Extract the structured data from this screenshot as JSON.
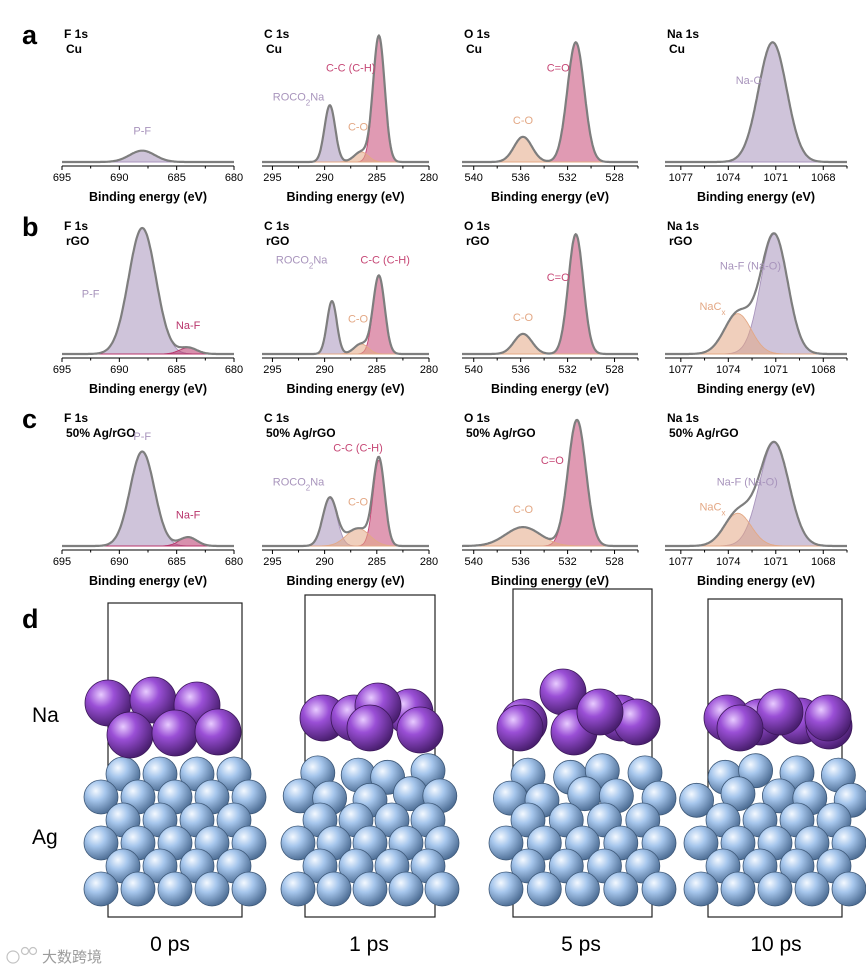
{
  "colors": {
    "P-F": "#a894bc",
    "Na-F": "#b8346a",
    "C-C": "#c64775",
    "C-O": "#e3a885",
    "ROCO2Na": "#a894bc",
    "C=O": "#c64775",
    "Na-O": "#a894bc",
    "NaCx": "#e3a885",
    "envelope": "#7e7e7e",
    "Na_atom": "#9a52d6",
    "Ag_atom": "#94b8e2"
  },
  "panel_letters": [
    "a",
    "b",
    "c",
    "d"
  ],
  "md": {
    "na_label": "Na",
    "ag_label": "Ag",
    "times": [
      "0 ps",
      "1 ps",
      "5 ps",
      "10 ps"
    ]
  },
  "watermark": "大数跨境",
  "chart_data": [
    {
      "type": "area",
      "panel": "a",
      "element": "F 1s",
      "substrate": "Cu",
      "xlabel": "Binding energy (eV)",
      "xlim": [
        695,
        680
      ],
      "ylim": [
        0,
        1
      ],
      "xticks": [
        695,
        690,
        685,
        680
      ],
      "peaks": [
        {
          "name": "P-F",
          "center": 688,
          "fwhm": 2.6,
          "height": 0.09,
          "color": "P-F"
        }
      ],
      "labels": [
        {
          "text": "P-F",
          "x": 688,
          "y": 0.22,
          "color": "P-F"
        }
      ]
    },
    {
      "type": "area",
      "panel": "a",
      "element": "C 1s",
      "substrate": "Cu",
      "xlabel": "Binding energy (eV)",
      "xlim": [
        296,
        280
      ],
      "ylim": [
        0,
        1
      ],
      "xticks": [
        295,
        290,
        285,
        280
      ],
      "peaks": [
        {
          "name": "C-C (C-H)",
          "center": 284.8,
          "fwhm": 1.3,
          "height": 1.0,
          "color": "C-C"
        },
        {
          "name": "ROCO2Na",
          "center": 289.5,
          "fwhm": 1.2,
          "height": 0.45,
          "color": "ROCO2Na"
        },
        {
          "name": "C-O",
          "center": 286.5,
          "fwhm": 1.6,
          "height": 0.08,
          "color": "C-O"
        }
      ],
      "labels": [
        {
          "text": "C-C (C-H)",
          "x": 287.5,
          "y": 0.72,
          "color": "C-C"
        },
        {
          "text": "ROCO",
          "sub": "2",
          "after": "Na",
          "x": 292.5,
          "y": 0.49,
          "color": "ROCO2Na"
        },
        {
          "text": "C-O",
          "x": 286.8,
          "y": 0.25,
          "color": "C-O"
        }
      ]
    },
    {
      "type": "area",
      "panel": "a",
      "element": "O 1s",
      "substrate": "Cu",
      "xlabel": "Binding energy (eV)",
      "xlim": [
        541,
        526
      ],
      "ylim": [
        0,
        1
      ],
      "xticks": [
        540,
        536,
        532,
        528
      ],
      "peaks": [
        {
          "name": "C=O",
          "center": 531.3,
          "fwhm": 1.7,
          "height": 0.95,
          "color": "C=O"
        },
        {
          "name": "C-O",
          "center": 535.8,
          "fwhm": 1.8,
          "height": 0.2,
          "color": "C-O"
        }
      ],
      "labels": [
        {
          "text": "C=O",
          "x": 532.8,
          "y": 0.72,
          "color": "C=O"
        },
        {
          "text": "C-O",
          "x": 535.8,
          "y": 0.3,
          "color": "C-O"
        }
      ]
    },
    {
      "type": "area",
      "panel": "a",
      "element": "Na 1s",
      "substrate": "Cu",
      "xlabel": "Binding energy (eV)",
      "xlim": [
        1078,
        1066.5
      ],
      "ylim": [
        0,
        1
      ],
      "xticks": [
        1077,
        1074,
        1071,
        1068
      ],
      "peaks": [
        {
          "name": "Na-O",
          "center": 1071.2,
          "fwhm": 2.1,
          "height": 0.95,
          "color": "Na-O"
        }
      ],
      "labels": [
        {
          "text": "Na-O",
          "x": 1072.7,
          "y": 0.62,
          "color": "Na-O"
        }
      ]
    },
    {
      "type": "area",
      "panel": "b",
      "element": "F 1s",
      "substrate": "rGO",
      "xlabel": "Binding energy (eV)",
      "xlim": [
        695,
        680
      ],
      "ylim": [
        0,
        1
      ],
      "xticks": [
        695,
        690,
        685,
        680
      ],
      "peaks": [
        {
          "name": "P-F",
          "center": 688,
          "fwhm": 2.8,
          "height": 1.0,
          "color": "P-F"
        },
        {
          "name": "Na-F",
          "center": 684,
          "fwhm": 1.8,
          "height": 0.05,
          "color": "Na-F"
        }
      ],
      "labels": [
        {
          "text": "P-F",
          "x": 692.5,
          "y": 0.45,
          "color": "P-F"
        },
        {
          "text": "Na-F",
          "x": 684,
          "y": 0.2,
          "color": "Na-F"
        }
      ]
    },
    {
      "type": "area",
      "panel": "b",
      "element": "C 1s",
      "substrate": "rGO",
      "xlabel": "Binding energy (eV)",
      "xlim": [
        296,
        280
      ],
      "ylim": [
        0,
        1
      ],
      "xticks": [
        295,
        290,
        285,
        280
      ],
      "peaks": [
        {
          "name": "C-C (C-H)",
          "center": 284.8,
          "fwhm": 1.3,
          "height": 0.62,
          "color": "C-C"
        },
        {
          "name": "ROCO2Na",
          "center": 289.3,
          "fwhm": 1.1,
          "height": 0.42,
          "color": "ROCO2Na"
        },
        {
          "name": "C-O",
          "center": 286.5,
          "fwhm": 1.6,
          "height": 0.08,
          "color": "C-O"
        }
      ],
      "labels": [
        {
          "text": "C-C (C-H)",
          "x": 284.2,
          "y": 0.72,
          "color": "C-C"
        },
        {
          "text": "ROCO",
          "sub": "2",
          "after": "Na",
          "x": 292.2,
          "y": 0.72,
          "color": "ROCO2Na"
        },
        {
          "text": "C-O",
          "x": 286.8,
          "y": 0.25,
          "color": "C-O"
        }
      ]
    },
    {
      "type": "area",
      "panel": "b",
      "element": "O 1s",
      "substrate": "rGO",
      "xlabel": "Binding energy (eV)",
      "xlim": [
        541,
        526
      ],
      "ylim": [
        0,
        1
      ],
      "xticks": [
        540,
        536,
        532,
        528
      ],
      "peaks": [
        {
          "name": "C=O",
          "center": 531.3,
          "fwhm": 1.5,
          "height": 0.95,
          "color": "C=O"
        },
        {
          "name": "C-O",
          "center": 535.8,
          "fwhm": 1.8,
          "height": 0.16,
          "color": "C-O"
        }
      ],
      "labels": [
        {
          "text": "C=O",
          "x": 532.8,
          "y": 0.58,
          "color": "C=O"
        },
        {
          "text": "C-O",
          "x": 535.8,
          "y": 0.26,
          "color": "C-O"
        }
      ]
    },
    {
      "type": "area",
      "panel": "b",
      "element": "Na 1s",
      "substrate": "rGO",
      "xlabel": "Binding energy (eV)",
      "xlim": [
        1078,
        1066.5
      ],
      "ylim": [
        0,
        1
      ],
      "xticks": [
        1077,
        1074,
        1071,
        1068
      ],
      "peaks": [
        {
          "name": "Na-F (Na-O)",
          "center": 1071.1,
          "fwhm": 2.0,
          "height": 0.95,
          "color": "Na-O"
        },
        {
          "name": "NaCx",
          "center": 1073.4,
          "fwhm": 2.0,
          "height": 0.32,
          "color": "NaCx"
        }
      ],
      "labels": [
        {
          "text": "Na-F (Na-O)",
          "x": 1072.6,
          "y": 0.67,
          "color": "Na-O"
        },
        {
          "text": "NaC",
          "sub": "x",
          "after": "",
          "x": 1075,
          "y": 0.35,
          "color": "NaCx"
        }
      ]
    },
    {
      "type": "area",
      "panel": "c",
      "element": "F 1s",
      "substrate": "50% Ag/rGO",
      "xlabel": "Binding energy (eV)",
      "xlim": [
        695,
        680
      ],
      "ylim": [
        0,
        1
      ],
      "xticks": [
        695,
        690,
        685,
        680
      ],
      "peaks": [
        {
          "name": "P-F",
          "center": 688,
          "fwhm": 2.5,
          "height": 0.75,
          "color": "P-F"
        },
        {
          "name": "Na-F",
          "center": 684,
          "fwhm": 1.8,
          "height": 0.07,
          "color": "Na-F"
        }
      ],
      "labels": [
        {
          "text": "P-F",
          "x": 688,
          "y": 0.84,
          "color": "P-F"
        },
        {
          "text": "Na-F",
          "x": 684,
          "y": 0.22,
          "color": "Na-F"
        }
      ]
    },
    {
      "type": "area",
      "panel": "c",
      "element": "C 1s",
      "substrate": "50% Ag/rGO",
      "xlabel": "Binding energy (eV)",
      "xlim": [
        296,
        280
      ],
      "ylim": [
        0,
        1
      ],
      "xticks": [
        295,
        290,
        285,
        280
      ],
      "peaks": [
        {
          "name": "C-C (C-H)",
          "center": 284.8,
          "fwhm": 1.3,
          "height": 0.68,
          "color": "C-C"
        },
        {
          "name": "ROCO2Na",
          "center": 289.5,
          "fwhm": 1.6,
          "height": 0.38,
          "color": "ROCO2Na"
        },
        {
          "name": "C-O",
          "center": 286.8,
          "fwhm": 2.6,
          "height": 0.14,
          "color": "C-O"
        }
      ],
      "labels": [
        {
          "text": "C-C (C-H)",
          "x": 286.8,
          "y": 0.75,
          "color": "C-C"
        },
        {
          "text": "ROCO",
          "sub": "2",
          "after": "Na",
          "x": 292.5,
          "y": 0.48,
          "color": "ROCO2Na"
        },
        {
          "text": "C-O",
          "x": 286.8,
          "y": 0.32,
          "color": "C-O"
        }
      ]
    },
    {
      "type": "area",
      "panel": "c",
      "element": "O 1s",
      "substrate": "50% Ag/rGO",
      "xlabel": "Binding energy (eV)",
      "xlim": [
        541,
        526
      ],
      "ylim": [
        0,
        1
      ],
      "xticks": [
        540,
        536,
        532,
        528
      ],
      "peaks": [
        {
          "name": "C=O",
          "center": 531.2,
          "fwhm": 1.8,
          "height": 1.0,
          "color": "C=O"
        },
        {
          "name": "C-O",
          "center": 535.8,
          "fwhm": 3.5,
          "height": 0.15,
          "color": "C-O"
        }
      ],
      "labels": [
        {
          "text": "C=O",
          "x": 533.3,
          "y": 0.65,
          "color": "C=O"
        },
        {
          "text": "C-O",
          "x": 535.8,
          "y": 0.26,
          "color": "C-O"
        }
      ]
    },
    {
      "type": "area",
      "panel": "c",
      "element": "Na 1s",
      "substrate": "50% Ag/rGO",
      "xlabel": "Binding energy (eV)",
      "xlim": [
        1078,
        1066.5
      ],
      "ylim": [
        0,
        1
      ],
      "xticks": [
        1077,
        1074,
        1071,
        1068
      ],
      "peaks": [
        {
          "name": "Na-F (Na-O)",
          "center": 1071.1,
          "fwhm": 2.2,
          "height": 0.82,
          "color": "Na-O"
        },
        {
          "name": "NaCx",
          "center": 1073.4,
          "fwhm": 2.0,
          "height": 0.26,
          "color": "NaCx"
        }
      ],
      "labels": [
        {
          "text": "Na-F (Na-O)",
          "x": 1072.8,
          "y": 0.48,
          "color": "Na-O"
        },
        {
          "text": "NaC",
          "sub": "x",
          "after": "",
          "x": 1075,
          "y": 0.28,
          "color": "NaCx"
        }
      ]
    }
  ]
}
